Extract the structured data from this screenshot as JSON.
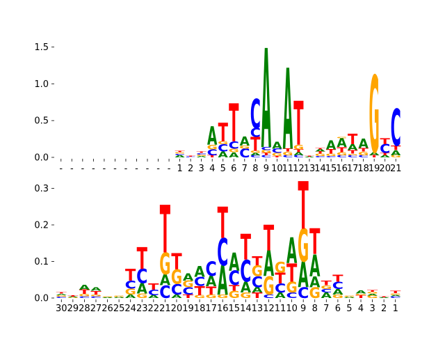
{
  "colors": {
    "A": "#008000",
    "C": "#0000ff",
    "G": "#ffa500",
    "T": "#ff0000"
  },
  "chart_data": [
    {
      "type": "sequence-logo",
      "title": "",
      "xlabel": "",
      "ylabel": "",
      "ylim": [
        0,
        1.6
      ],
      "yticks": [
        "0.0",
        "0.5",
        "1.0",
        "1.5"
      ],
      "ytick_values": [
        0,
        0.5,
        1.0,
        1.5
      ],
      "positions": [
        "-",
        "-",
        "-",
        "-",
        "-",
        "-",
        "-",
        "-",
        "-",
        "-",
        "-",
        "1",
        "2",
        "3",
        "4",
        "5",
        "6",
        "7",
        "8",
        "9",
        "10",
        "11",
        "12",
        "13",
        "14",
        "15",
        "16",
        "17",
        "18",
        "19",
        "20",
        "21"
      ],
      "stacks": [
        [],
        [],
        [],
        [],
        [],
        [],
        [],
        [],
        [],
        [],
        [],
        [
          [
            "A",
            0.03
          ],
          [
            "C",
            0.02
          ],
          [
            "G",
            0.02
          ],
          [
            "T",
            0.02
          ]
        ],
        [
          [
            "C",
            0.01
          ],
          [
            "T",
            0.01
          ]
        ],
        [
          [
            "A",
            0.02
          ],
          [
            "G",
            0.02
          ],
          [
            "C",
            0.02
          ],
          [
            "T",
            0.02
          ]
        ],
        [
          [
            "T",
            0.03
          ],
          [
            "C",
            0.08
          ],
          [
            "G",
            0.06
          ],
          [
            "A",
            0.25
          ]
        ],
        [
          [
            "A",
            0.08
          ],
          [
            "C",
            0.1
          ],
          [
            "G",
            0.04
          ],
          [
            "T",
            0.25
          ]
        ],
        [
          [
            "A",
            0.07
          ],
          [
            "G",
            0.05
          ],
          [
            "C",
            0.1
          ],
          [
            "T",
            0.52
          ]
        ],
        [
          [
            "C",
            0.12
          ],
          [
            "G",
            0.04
          ],
          [
            "A",
            0.12
          ]
        ],
        [
          [
            "C",
            0.03
          ],
          [
            "A",
            0.03
          ],
          [
            "G",
            0.03
          ],
          [
            "T",
            0.19
          ],
          [
            "C",
            0.12
          ],
          [
            "C",
            0.4
          ]
        ],
        [
          [
            "C",
            0.03
          ],
          [
            "T",
            0.03
          ],
          [
            "G",
            0.04
          ],
          [
            "C",
            0.04
          ],
          [
            "A",
            1.35
          ]
        ],
        [
          [
            "T",
            0.02
          ],
          [
            "G",
            0.04
          ],
          [
            "C",
            0.06
          ],
          [
            "A",
            0.09
          ]
        ],
        [
          [
            "C",
            0.03
          ],
          [
            "G",
            0.05
          ],
          [
            "T",
            0.04
          ],
          [
            "A",
            1.1
          ]
        ],
        [
          [
            "C",
            0.03
          ],
          [
            "A",
            0.04
          ],
          [
            "T",
            0.04
          ],
          [
            "G",
            0.06
          ],
          [
            "T",
            0.6
          ]
        ],
        [
          [
            "A",
            0.01
          ],
          [
            "T",
            0.01
          ]
        ],
        [
          [
            "C",
            0.02
          ],
          [
            "G",
            0.03
          ],
          [
            "T",
            0.03
          ],
          [
            "A",
            0.03
          ],
          [
            "T",
            0.02
          ]
        ],
        [
          [
            "C",
            0.02
          ],
          [
            "G",
            0.03
          ],
          [
            "T",
            0.06
          ],
          [
            "A",
            0.12
          ]
        ],
        [
          [
            "C",
            0.03
          ],
          [
            "G",
            0.04
          ],
          [
            "T",
            0.07
          ],
          [
            "A",
            0.12
          ],
          [
            "G",
            0.02
          ]
        ],
        [
          [
            "C",
            0.03
          ],
          [
            "G",
            0.02
          ],
          [
            "T",
            0.05
          ],
          [
            "A",
            0.08
          ],
          [
            "T",
            0.14
          ]
        ],
        [
          [
            "C",
            0.03
          ],
          [
            "G",
            0.05
          ],
          [
            "T",
            0.05
          ],
          [
            "A",
            0.13
          ]
        ],
        [
          [
            "T",
            0.03
          ],
          [
            "A",
            0.04
          ],
          [
            "G",
            1.05
          ]
        ],
        [
          [
            "A",
            0.03
          ],
          [
            "T",
            0.03
          ],
          [
            "C",
            0.12
          ],
          [
            "T",
            0.08
          ]
        ],
        [
          [
            "G",
            0.03
          ],
          [
            "A",
            0.07
          ],
          [
            "T",
            0.06
          ],
          [
            "C",
            0.5
          ]
        ]
      ]
    },
    {
      "type": "sequence-logo",
      "title": "",
      "xlabel": "",
      "ylabel": "",
      "ylim": [
        0,
        0.32
      ],
      "yticks": [
        "0.0",
        "0.1",
        "0.2",
        "0.3"
      ],
      "ytick_values": [
        0,
        0.1,
        0.2,
        0.3
      ],
      "positions": [
        "30",
        "29",
        "28",
        "27",
        "26",
        "25",
        "24",
        "23",
        "22",
        "21",
        "20",
        "19",
        "18",
        "17",
        "16",
        "15",
        "14",
        "13",
        "12",
        "11",
        "10",
        "9",
        "8",
        "7",
        "6",
        "5",
        "4",
        "3",
        "2",
        "1"
      ],
      "stacks": [
        [
          [
            "C",
            0.004
          ],
          [
            "G",
            0.004
          ],
          [
            "A",
            0.004
          ],
          [
            "T",
            0.004
          ]
        ],
        [
          [
            "G",
            0.002
          ],
          [
            "A",
            0.002
          ],
          [
            "T",
            0.003
          ]
        ],
        [
          [
            "C",
            0.005
          ],
          [
            "G",
            0.006
          ],
          [
            "T",
            0.012
          ],
          [
            "A",
            0.014
          ]
        ],
        [
          [
            "C",
            0.005
          ],
          [
            "G",
            0.005
          ],
          [
            "T",
            0.01
          ],
          [
            "A",
            0.01
          ]
        ],
        [
          [
            "A",
            0.002
          ],
          [
            "G",
            0.002
          ]
        ],
        [
          [
            "A",
            0.003
          ],
          [
            "G",
            0.003
          ]
        ],
        [
          [
            "A",
            0.01
          ],
          [
            "G",
            0.016
          ],
          [
            "C",
            0.022
          ],
          [
            "T",
            0.032
          ]
        ],
        [
          [
            "G",
            0.012
          ],
          [
            "A",
            0.028
          ],
          [
            "C",
            0.04
          ],
          [
            "T",
            0.06
          ]
        ],
        [
          [
            "A",
            0.008
          ],
          [
            "C",
            0.015
          ],
          [
            "T",
            0.017
          ]
        ],
        [
          [
            "C",
            0.035
          ],
          [
            "A",
            0.03
          ],
          [
            "G",
            0.06
          ],
          [
            "T",
            0.13
          ]
        ],
        [
          [
            "A",
            0.01
          ],
          [
            "C",
            0.028
          ],
          [
            "G",
            0.04
          ],
          [
            "T",
            0.045
          ]
        ],
        [
          [
            "T",
            0.01
          ],
          [
            "C",
            0.02
          ],
          [
            "G",
            0.018
          ],
          [
            "A",
            0.02
          ]
        ],
        [
          [
            "G",
            0.008
          ],
          [
            "T",
            0.025
          ],
          [
            "C",
            0.025
          ],
          [
            "A",
            0.03
          ]
        ],
        [
          [
            "G",
            0.01
          ],
          [
            "T",
            0.022
          ],
          [
            "A",
            0.028
          ],
          [
            "C",
            0.04
          ]
        ],
        [
          [
            "G",
            0.01
          ],
          [
            "A",
            0.08
          ],
          [
            "C",
            0.075
          ],
          [
            "T",
            0.085
          ]
        ],
        [
          [
            "G",
            0.02
          ],
          [
            "T",
            0.015
          ],
          [
            "C",
            0.04
          ],
          [
            "A",
            0.05
          ]
        ],
        [
          [
            "G",
            0.015
          ],
          [
            "A",
            0.03
          ],
          [
            "C",
            0.06
          ],
          [
            "T",
            0.07
          ]
        ],
        [
          [
            "T",
            0.015
          ],
          [
            "A",
            0.015
          ],
          [
            "C",
            0.03
          ],
          [
            "G",
            0.03
          ],
          [
            "T",
            0.025
          ]
        ],
        [
          [
            "C",
            0.01
          ],
          [
            "G",
            0.05
          ],
          [
            "A",
            0.07
          ],
          [
            "T",
            0.07
          ]
        ],
        [
          [
            "A",
            0.015
          ],
          [
            "C",
            0.025
          ],
          [
            "T",
            0.03
          ],
          [
            "G",
            0.03
          ]
        ],
        [
          [
            "C",
            0.015
          ],
          [
            "G",
            0.03
          ],
          [
            "T",
            0.05
          ],
          [
            "A",
            0.07
          ]
        ],
        [
          [
            "C",
            0.03
          ],
          [
            "A",
            0.07
          ],
          [
            "G",
            0.09
          ],
          [
            "T",
            0.13
          ]
        ],
        [
          [
            "G",
            0.03
          ],
          [
            "A",
            0.03
          ],
          [
            "A",
            0.06
          ],
          [
            "T",
            0.07
          ]
        ],
        [
          [
            "A",
            0.015
          ],
          [
            "C",
            0.01
          ],
          [
            "G",
            0.01
          ],
          [
            "T",
            0.012
          ]
        ],
        [
          [
            "G",
            0.01
          ],
          [
            "A",
            0.015
          ],
          [
            "C",
            0.02
          ],
          [
            "T",
            0.018
          ]
        ],
        [
          [
            "A",
            0.003
          ],
          [
            "G",
            0.003
          ]
        ],
        [
          [
            "T",
            0.008
          ],
          [
            "G",
            0.004
          ],
          [
            "A",
            0.008
          ]
        ],
        [
          [
            "G",
            0.007
          ],
          [
            "A",
            0.005
          ],
          [
            "G",
            0.005
          ],
          [
            "T",
            0.005
          ]
        ],
        [
          [
            "A",
            0.002
          ],
          [
            "T",
            0.002
          ]
        ],
        [
          [
            "C",
            0.005
          ],
          [
            "A",
            0.004
          ],
          [
            "G",
            0.004
          ],
          [
            "T",
            0.006
          ]
        ]
      ]
    }
  ]
}
